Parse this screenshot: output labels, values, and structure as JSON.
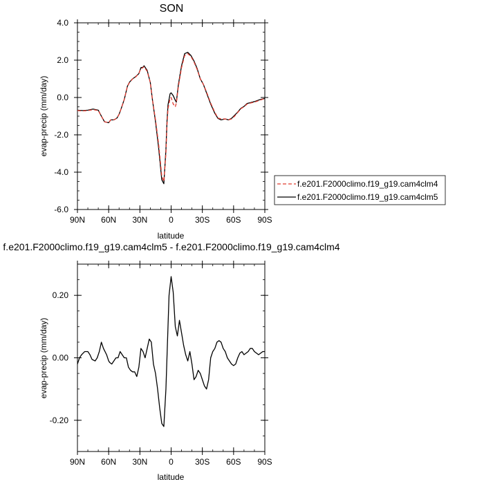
{
  "chart_data": [
    {
      "type": "line",
      "title": "SON",
      "xlabel": "latitude",
      "ylabel": "evap-precip (mm/day)",
      "xlim": [
        90,
        -90
      ],
      "ylim": [
        -6.0,
        4.0
      ],
      "x_ticks": [
        90,
        60,
        30,
        0,
        -30,
        -60,
        -90
      ],
      "x_tick_labels": [
        "90N",
        "60N",
        "30N",
        "0",
        "30S",
        "60S",
        "90S"
      ],
      "y_ticks": [
        -6,
        -4,
        -2,
        0,
        2,
        4
      ],
      "y_tick_labels": [
        "-6.0",
        "-4.0",
        "-2.0",
        "0.0",
        "2.0",
        "4.0"
      ],
      "legend_position": "outside-right",
      "series": [
        {
          "name": "f.e201.F2000climo.f19_g19.cam4clm4",
          "color": "#e03a2f",
          "dash": "dashed",
          "x": [
            90,
            85,
            80,
            75,
            70,
            67,
            64,
            60,
            58,
            55,
            52,
            50,
            48,
            45,
            42,
            40,
            37,
            34,
            31,
            29,
            27,
            26,
            23,
            20,
            18,
            15,
            12,
            9,
            7,
            5,
            4,
            3,
            1,
            0,
            -2,
            -4,
            -5,
            -7,
            -10,
            -13,
            -16,
            -19,
            -22,
            -25,
            -28,
            -31,
            -34,
            -38,
            -42,
            -45,
            -48,
            -52,
            -55,
            -58,
            -61,
            -64,
            -67,
            -70,
            -73,
            -76,
            -80,
            -85,
            -90
          ],
          "y": [
            -0.7,
            -0.72,
            -0.7,
            -0.65,
            -0.7,
            -1.0,
            -1.3,
            -1.35,
            -1.2,
            -1.2,
            -1.1,
            -0.9,
            -0.6,
            -0.1,
            0.6,
            0.8,
            1.0,
            1.1,
            1.3,
            1.55,
            1.6,
            1.65,
            1.4,
            0.8,
            -0.1,
            -1.2,
            -2.5,
            -4.2,
            -4.5,
            -3.0,
            -1.5,
            -0.6,
            -0.05,
            0.0,
            -0.35,
            -0.5,
            -0.3,
            0.6,
            1.6,
            2.25,
            2.35,
            2.2,
            1.9,
            1.5,
            1.0,
            0.7,
            0.3,
            -0.3,
            -0.8,
            -1.1,
            -1.15,
            -1.15,
            -1.2,
            -1.15,
            -1.0,
            -0.8,
            -0.6,
            -0.5,
            -0.35,
            -0.3,
            -0.25,
            -0.15,
            -0.05
          ]
        },
        {
          "name": "f.e201.F2000climo.f19_g19.cam4clm5",
          "color": "#000000",
          "dash": "solid",
          "x": [
            90,
            85,
            80,
            75,
            70,
            67,
            64,
            60,
            58,
            55,
            52,
            50,
            48,
            45,
            42,
            40,
            37,
            34,
            31,
            29,
            27,
            26,
            23,
            20,
            18,
            15,
            12,
            9,
            7,
            5,
            4,
            3,
            1,
            0,
            -2,
            -4,
            -5,
            -7,
            -10,
            -13,
            -16,
            -19,
            -22,
            -25,
            -28,
            -31,
            -34,
            -38,
            -42,
            -45,
            -48,
            -52,
            -55,
            -58,
            -61,
            -64,
            -67,
            -70,
            -73,
            -76,
            -80,
            -85,
            -90
          ],
          "y": [
            -0.68,
            -0.7,
            -0.68,
            -0.62,
            -0.68,
            -1.0,
            -1.3,
            -1.35,
            -1.2,
            -1.2,
            -1.1,
            -0.9,
            -0.6,
            -0.1,
            0.6,
            0.82,
            1.0,
            1.12,
            1.28,
            1.6,
            1.62,
            1.7,
            1.45,
            0.8,
            -0.1,
            -1.3,
            -2.7,
            -4.4,
            -4.62,
            -2.8,
            -1.3,
            -0.4,
            0.2,
            0.25,
            0.1,
            -0.15,
            -0.25,
            0.7,
            1.7,
            2.35,
            2.42,
            2.25,
            1.95,
            1.55,
            1.0,
            0.7,
            0.25,
            -0.35,
            -0.85,
            -1.12,
            -1.2,
            -1.15,
            -1.2,
            -1.12,
            -0.95,
            -0.78,
            -0.58,
            -0.48,
            -0.32,
            -0.28,
            -0.22,
            -0.12,
            -0.05
          ]
        }
      ]
    },
    {
      "type": "line",
      "title": "f.e201.F2000climo.f19_g19.cam4clm5 - f.e201.F2000climo.f19_g19.cam4clm4",
      "xlabel": "latitude",
      "ylabel": "evap-precip (mm/day)",
      "xlim": [
        90,
        -90
      ],
      "ylim": [
        -0.3,
        0.3
      ],
      "x_ticks": [
        90,
        60,
        30,
        0,
        -30,
        -60,
        -90
      ],
      "x_tick_labels": [
        "90N",
        "60N",
        "30N",
        "0",
        "30S",
        "60S",
        "90S"
      ],
      "y_ticks": [
        -0.2,
        0.0,
        0.2
      ],
      "y_tick_labels": [
        "-0.20",
        "0.00",
        "0.20"
      ],
      "series": [
        {
          "color": "#000000",
          "dash": "solid",
          "x": [
            90,
            88,
            86,
            83,
            80,
            78,
            76,
            73,
            71,
            69,
            67,
            65,
            62,
            60,
            59,
            57,
            55,
            53,
            51,
            49,
            47,
            45,
            43,
            41,
            39,
            37,
            35,
            33,
            31,
            29,
            27,
            25,
            23,
            21,
            19,
            17,
            15,
            13,
            11,
            9,
            7,
            5,
            3,
            2,
            0,
            -2,
            -4,
            -6,
            -8,
            -10,
            -12,
            -14,
            -16,
            -18,
            -20,
            -22,
            -24,
            -26,
            -28,
            -30,
            -32,
            -34,
            -36,
            -38,
            -40,
            -42,
            -44,
            -46,
            -48,
            -50,
            -52,
            -54,
            -56,
            -58,
            -60,
            -62,
            -64,
            -66,
            -68,
            -70,
            -72,
            -74,
            -76,
            -78,
            -80,
            -82,
            -84,
            -86,
            -88,
            -90
          ],
          "y": [
            -0.02,
            0.0,
            0.01,
            0.02,
            0.02,
            0.01,
            -0.005,
            -0.01,
            0.0,
            0.02,
            0.05,
            0.03,
            0.01,
            -0.01,
            -0.015,
            -0.02,
            -0.01,
            0.0,
            0.0,
            0.02,
            0.01,
            0.0,
            0.0,
            -0.03,
            -0.04,
            -0.045,
            -0.045,
            -0.06,
            -0.03,
            0.03,
            0.02,
            0.0,
            0.03,
            0.06,
            0.05,
            -0.02,
            -0.05,
            -0.1,
            -0.16,
            -0.21,
            -0.22,
            -0.1,
            0.1,
            0.2,
            0.26,
            0.21,
            0.1,
            0.07,
            0.12,
            0.08,
            0.04,
            0.01,
            -0.01,
            0.02,
            -0.02,
            -0.07,
            -0.06,
            -0.04,
            -0.05,
            -0.07,
            -0.09,
            -0.1,
            -0.07,
            0.0,
            0.02,
            0.03,
            0.05,
            0.055,
            0.05,
            0.03,
            0.02,
            0.0,
            -0.01,
            -0.02,
            -0.025,
            -0.02,
            0.0,
            0.015,
            0.02,
            0.01,
            0.015,
            0.02,
            0.03,
            0.03,
            0.02,
            0.015,
            0.01,
            0.015,
            0.02,
            0.02
          ]
        }
      ]
    }
  ]
}
